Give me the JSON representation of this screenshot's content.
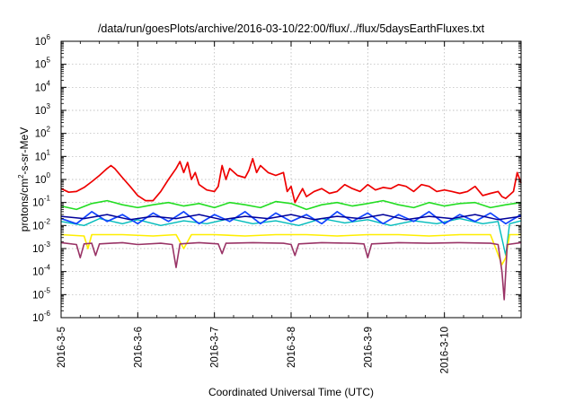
{
  "chart_data": {
    "type": "line",
    "title": "/data/run/goesPlots/archive/2016-03-10/22:00/flux/../flux/5daysEarthFluxes.txt",
    "xlabel": "Coordinated Universal Time (UTC)",
    "ylabel": "protons/cm2-s-sr-MeV",
    "ylabel_parts": {
      "pre": "protons/cm",
      "sup": "2",
      "post": "-s-sr-MeV"
    },
    "yscale": "log",
    "ylim_exponents": [
      -6,
      6
    ],
    "y_ticks": [
      {
        "base": "10",
        "exp": "6"
      },
      {
        "base": "10",
        "exp": "5"
      },
      {
        "base": "10",
        "exp": "4"
      },
      {
        "base": "10",
        "exp": "3"
      },
      {
        "base": "10",
        "exp": "2"
      },
      {
        "base": "10",
        "exp": "1"
      },
      {
        "base": "10",
        "exp": "0"
      },
      {
        "base": "10",
        "exp": "-1"
      },
      {
        "base": "10",
        "exp": "-2"
      },
      {
        "base": "10",
        "exp": "-3"
      },
      {
        "base": "10",
        "exp": "-4"
      },
      {
        "base": "10",
        "exp": "-5"
      },
      {
        "base": "10",
        "exp": "-6"
      }
    ],
    "x_ticks": [
      "2016-3-5",
      "2016-3-6",
      "2016-3-7",
      "2016-3-8",
      "2016-3-9",
      "2016-3-10"
    ],
    "xlim_days": [
      0,
      6.0
    ],
    "x_days_note": "days elapsed since 2016-3-5 00:00 UTC",
    "grid": true,
    "legend": "none",
    "series": [
      {
        "color": "#ee0000",
        "width": 1.7,
        "points": [
          [
            0.0,
            0.4
          ],
          [
            0.1,
            0.28
          ],
          [
            0.2,
            0.3
          ],
          [
            0.3,
            0.45
          ],
          [
            0.4,
            0.8
          ],
          [
            0.5,
            1.5
          ],
          [
            0.6,
            3.0
          ],
          [
            0.65,
            4.0
          ],
          [
            0.7,
            3.0
          ],
          [
            0.8,
            1.2
          ],
          [
            0.9,
            0.5
          ],
          [
            1.0,
            0.2
          ],
          [
            1.1,
            0.12
          ],
          [
            1.2,
            0.12
          ],
          [
            1.3,
            0.3
          ],
          [
            1.4,
            1.0
          ],
          [
            1.5,
            3.0
          ],
          [
            1.55,
            6.0
          ],
          [
            1.6,
            2.0
          ],
          [
            1.65,
            5.5
          ],
          [
            1.7,
            1.0
          ],
          [
            1.75,
            2.0
          ],
          [
            1.8,
            0.6
          ],
          [
            1.9,
            0.35
          ],
          [
            2.0,
            0.3
          ],
          [
            2.05,
            0.5
          ],
          [
            2.1,
            4.0
          ],
          [
            2.15,
            1.0
          ],
          [
            2.2,
            3.0
          ],
          [
            2.3,
            1.5
          ],
          [
            2.4,
            1.2
          ],
          [
            2.45,
            2.5
          ],
          [
            2.5,
            8.0
          ],
          [
            2.55,
            2.0
          ],
          [
            2.6,
            4.0
          ],
          [
            2.7,
            2.0
          ],
          [
            2.8,
            1.5
          ],
          [
            2.9,
            2.0
          ],
          [
            2.95,
            0.3
          ],
          [
            3.0,
            0.5
          ],
          [
            3.05,
            0.1
          ],
          [
            3.1,
            0.2
          ],
          [
            3.15,
            0.4
          ],
          [
            3.2,
            0.18
          ],
          [
            3.3,
            0.3
          ],
          [
            3.4,
            0.4
          ],
          [
            3.5,
            0.25
          ],
          [
            3.6,
            0.3
          ],
          [
            3.7,
            0.6
          ],
          [
            3.8,
            0.4
          ],
          [
            3.9,
            0.3
          ],
          [
            4.0,
            0.6
          ],
          [
            4.1,
            0.35
          ],
          [
            4.2,
            0.45
          ],
          [
            4.3,
            0.4
          ],
          [
            4.4,
            0.6
          ],
          [
            4.5,
            0.5
          ],
          [
            4.6,
            0.3
          ],
          [
            4.7,
            0.6
          ],
          [
            4.8,
            0.5
          ],
          [
            4.9,
            0.3
          ],
          [
            5.0,
            0.35
          ],
          [
            5.1,
            0.3
          ],
          [
            5.2,
            0.25
          ],
          [
            5.3,
            0.3
          ],
          [
            5.4,
            0.5
          ],
          [
            5.5,
            0.2
          ],
          [
            5.6,
            0.25
          ],
          [
            5.7,
            0.3
          ],
          [
            5.75,
            0.18
          ],
          [
            5.8,
            0.15
          ],
          [
            5.9,
            0.3
          ],
          [
            5.95,
            2.0
          ],
          [
            6.0,
            0.7
          ]
        ]
      },
      {
        "color": "#22dd22",
        "width": 1.6,
        "points": [
          [
            0.0,
            0.07
          ],
          [
            0.2,
            0.05
          ],
          [
            0.4,
            0.09
          ],
          [
            0.6,
            0.12
          ],
          [
            0.8,
            0.08
          ],
          [
            1.0,
            0.06
          ],
          [
            1.2,
            0.08
          ],
          [
            1.4,
            0.1
          ],
          [
            1.6,
            0.07
          ],
          [
            1.8,
            0.09
          ],
          [
            2.0,
            0.06
          ],
          [
            2.2,
            0.1
          ],
          [
            2.4,
            0.08
          ],
          [
            2.6,
            0.06
          ],
          [
            2.8,
            0.11
          ],
          [
            3.0,
            0.09
          ],
          [
            3.2,
            0.05
          ],
          [
            3.4,
            0.08
          ],
          [
            3.6,
            0.1
          ],
          [
            3.8,
            0.07
          ],
          [
            4.0,
            0.09
          ],
          [
            4.2,
            0.12
          ],
          [
            4.4,
            0.08
          ],
          [
            4.6,
            0.06
          ],
          [
            4.8,
            0.1
          ],
          [
            5.0,
            0.07
          ],
          [
            5.2,
            0.09
          ],
          [
            5.4,
            0.1
          ],
          [
            5.6,
            0.06
          ],
          [
            5.8,
            0.08
          ],
          [
            6.0,
            0.1
          ]
        ]
      },
      {
        "color": "#00bbbb",
        "width": 1.4,
        "points": [
          [
            0.0,
            0.015
          ],
          [
            0.3,
            0.01
          ],
          [
            0.5,
            0.02
          ],
          [
            0.8,
            0.012
          ],
          [
            1.0,
            0.018
          ],
          [
            1.3,
            0.01
          ],
          [
            1.6,
            0.016
          ],
          [
            1.9,
            0.012
          ],
          [
            2.2,
            0.02
          ],
          [
            2.5,
            0.012
          ],
          [
            2.8,
            0.016
          ],
          [
            3.1,
            0.01
          ],
          [
            3.4,
            0.02
          ],
          [
            3.7,
            0.013
          ],
          [
            4.0,
            0.018
          ],
          [
            4.3,
            0.01
          ],
          [
            4.6,
            0.016
          ],
          [
            4.9,
            0.012
          ],
          [
            5.2,
            0.02
          ],
          [
            5.5,
            0.012
          ],
          [
            5.7,
            0.015
          ],
          [
            5.8,
            0.0005
          ],
          [
            5.85,
            0.012
          ],
          [
            6.0,
            0.016
          ]
        ]
      },
      {
        "color": "#1144ff",
        "width": 1.7,
        "points": [
          [
            0.0,
            0.02
          ],
          [
            0.2,
            0.012
          ],
          [
            0.4,
            0.04
          ],
          [
            0.6,
            0.015
          ],
          [
            0.8,
            0.03
          ],
          [
            1.0,
            0.012
          ],
          [
            1.2,
            0.035
          ],
          [
            1.4,
            0.015
          ],
          [
            1.6,
            0.04
          ],
          [
            1.8,
            0.012
          ],
          [
            2.0,
            0.03
          ],
          [
            2.2,
            0.015
          ],
          [
            2.4,
            0.04
          ],
          [
            2.6,
            0.012
          ],
          [
            2.8,
            0.035
          ],
          [
            3.0,
            0.015
          ],
          [
            3.2,
            0.03
          ],
          [
            3.4,
            0.012
          ],
          [
            3.6,
            0.04
          ],
          [
            3.8,
            0.015
          ],
          [
            4.0,
            0.035
          ],
          [
            4.2,
            0.012
          ],
          [
            4.4,
            0.03
          ],
          [
            4.6,
            0.015
          ],
          [
            4.8,
            0.04
          ],
          [
            5.0,
            0.012
          ],
          [
            5.2,
            0.03
          ],
          [
            5.4,
            0.015
          ],
          [
            5.6,
            0.035
          ],
          [
            5.8,
            0.012
          ],
          [
            6.0,
            0.03
          ]
        ]
      },
      {
        "color": "#000099",
        "width": 1.5,
        "points": [
          [
            0.0,
            0.025
          ],
          [
            0.3,
            0.02
          ],
          [
            0.6,
            0.03
          ],
          [
            0.9,
            0.018
          ],
          [
            1.2,
            0.025
          ],
          [
            1.5,
            0.02
          ],
          [
            1.8,
            0.03
          ],
          [
            2.1,
            0.018
          ],
          [
            2.4,
            0.025
          ],
          [
            2.7,
            0.02
          ],
          [
            3.0,
            0.03
          ],
          [
            3.3,
            0.018
          ],
          [
            3.6,
            0.025
          ],
          [
            3.9,
            0.02
          ],
          [
            4.2,
            0.03
          ],
          [
            4.5,
            0.018
          ],
          [
            4.8,
            0.025
          ],
          [
            5.1,
            0.02
          ],
          [
            5.4,
            0.03
          ],
          [
            5.7,
            0.018
          ],
          [
            6.0,
            0.025
          ]
        ]
      },
      {
        "color": "#ffee00",
        "width": 1.6,
        "points": [
          [
            0.0,
            0.004
          ],
          [
            0.3,
            0.0035
          ],
          [
            0.35,
            0.001
          ],
          [
            0.4,
            0.004
          ],
          [
            0.8,
            0.004
          ],
          [
            1.2,
            0.0035
          ],
          [
            1.5,
            0.004
          ],
          [
            1.6,
            0.001
          ],
          [
            1.7,
            0.004
          ],
          [
            2.0,
            0.004
          ],
          [
            2.4,
            0.0035
          ],
          [
            2.8,
            0.004
          ],
          [
            3.2,
            0.004
          ],
          [
            3.6,
            0.0035
          ],
          [
            4.0,
            0.004
          ],
          [
            4.4,
            0.004
          ],
          [
            4.8,
            0.0035
          ],
          [
            5.2,
            0.004
          ],
          [
            5.6,
            0.004
          ],
          [
            5.75,
            0.0002
          ],
          [
            5.8,
            0.0004
          ],
          [
            5.85,
            0.004
          ],
          [
            6.0,
            0.004
          ]
        ]
      },
      {
        "color": "#993366",
        "width": 1.6,
        "points": [
          [
            0.0,
            0.0018
          ],
          [
            0.2,
            0.0015
          ],
          [
            0.25,
            0.0004
          ],
          [
            0.3,
            0.0016
          ],
          [
            0.4,
            0.0017
          ],
          [
            0.45,
            0.0005
          ],
          [
            0.5,
            0.0016
          ],
          [
            0.8,
            0.0018
          ],
          [
            1.0,
            0.0015
          ],
          [
            1.3,
            0.0017
          ],
          [
            1.45,
            0.0015
          ],
          [
            1.5,
            0.00015
          ],
          [
            1.55,
            0.0016
          ],
          [
            1.8,
            0.0018
          ],
          [
            2.05,
            0.0016
          ],
          [
            2.1,
            0.0006
          ],
          [
            2.15,
            0.0017
          ],
          [
            2.5,
            0.0018
          ],
          [
            2.9,
            0.0017
          ],
          [
            3.0,
            0.0015
          ],
          [
            3.05,
            0.0005
          ],
          [
            3.1,
            0.0016
          ],
          [
            3.4,
            0.0018
          ],
          [
            3.8,
            0.0017
          ],
          [
            3.95,
            0.0016
          ],
          [
            4.0,
            0.0004
          ],
          [
            4.05,
            0.0016
          ],
          [
            4.4,
            0.0018
          ],
          [
            4.8,
            0.0017
          ],
          [
            5.2,
            0.0018
          ],
          [
            5.6,
            0.0017
          ],
          [
            5.7,
            0.0015
          ],
          [
            5.75,
            0.0001
          ],
          [
            5.78,
            6e-06
          ],
          [
            5.82,
            0.0015
          ],
          [
            6.0,
            0.0018
          ]
        ]
      }
    ]
  }
}
